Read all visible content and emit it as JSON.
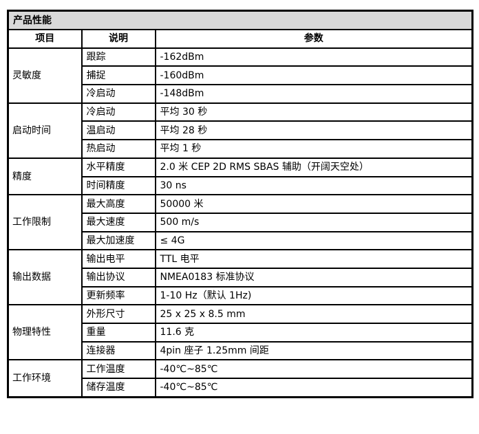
{
  "title": "产品性能",
  "headers": [
    "项目",
    "说明",
    "参数"
  ],
  "groups": [
    {
      "name": "灵敏度",
      "rows": [
        [
          "跟踪",
          "-162dBm"
        ],
        [
          "捕捉",
          "-160dBm"
        ],
        [
          "冷启动",
          "-148dBm"
        ]
      ]
    },
    {
      "name": "启动时间",
      "rows": [
        [
          "冷启动",
          "平均 30 秒"
        ],
        [
          "温启动",
          "平均 28 秒"
        ],
        [
          "热启动",
          "平均 1 秒"
        ]
      ]
    },
    {
      "name": "精度",
      "rows": [
        [
          "水平精度",
          "2.0 米 CEP 2D RMS SBAS 辅助（开阔天空处）"
        ],
        [
          "时间精度",
          "30 ns"
        ]
      ]
    },
    {
      "name": "工作限制",
      "rows": [
        [
          "最大高度",
          "50000 米"
        ],
        [
          "最大速度",
          "500 m/s"
        ],
        [
          "最大加速度",
          "≤  4G"
        ]
      ]
    },
    {
      "name": "输出数据",
      "rows": [
        [
          "输出电平",
          "TTL 电平"
        ],
        [
          "输出协议",
          "NMEA0183 标准协议"
        ],
        [
          "更新频率",
          "1-10 Hz（默认 1Hz)"
        ]
      ]
    },
    {
      "name": "物理特性",
      "rows": [
        [
          "外形尺寸",
          "25 x 25 x 8.5 mm"
        ],
        [
          "重量",
          "11.6 克"
        ],
        [
          "连接器",
          "4pin 座子 1.25mm 间距"
        ]
      ]
    },
    {
      "name": "工作环境",
      "rows": [
        [
          "工作温度",
          "-40℃~85℃"
        ],
        [
          "储存温度",
          "-40℃~85℃"
        ]
      ]
    }
  ]
}
